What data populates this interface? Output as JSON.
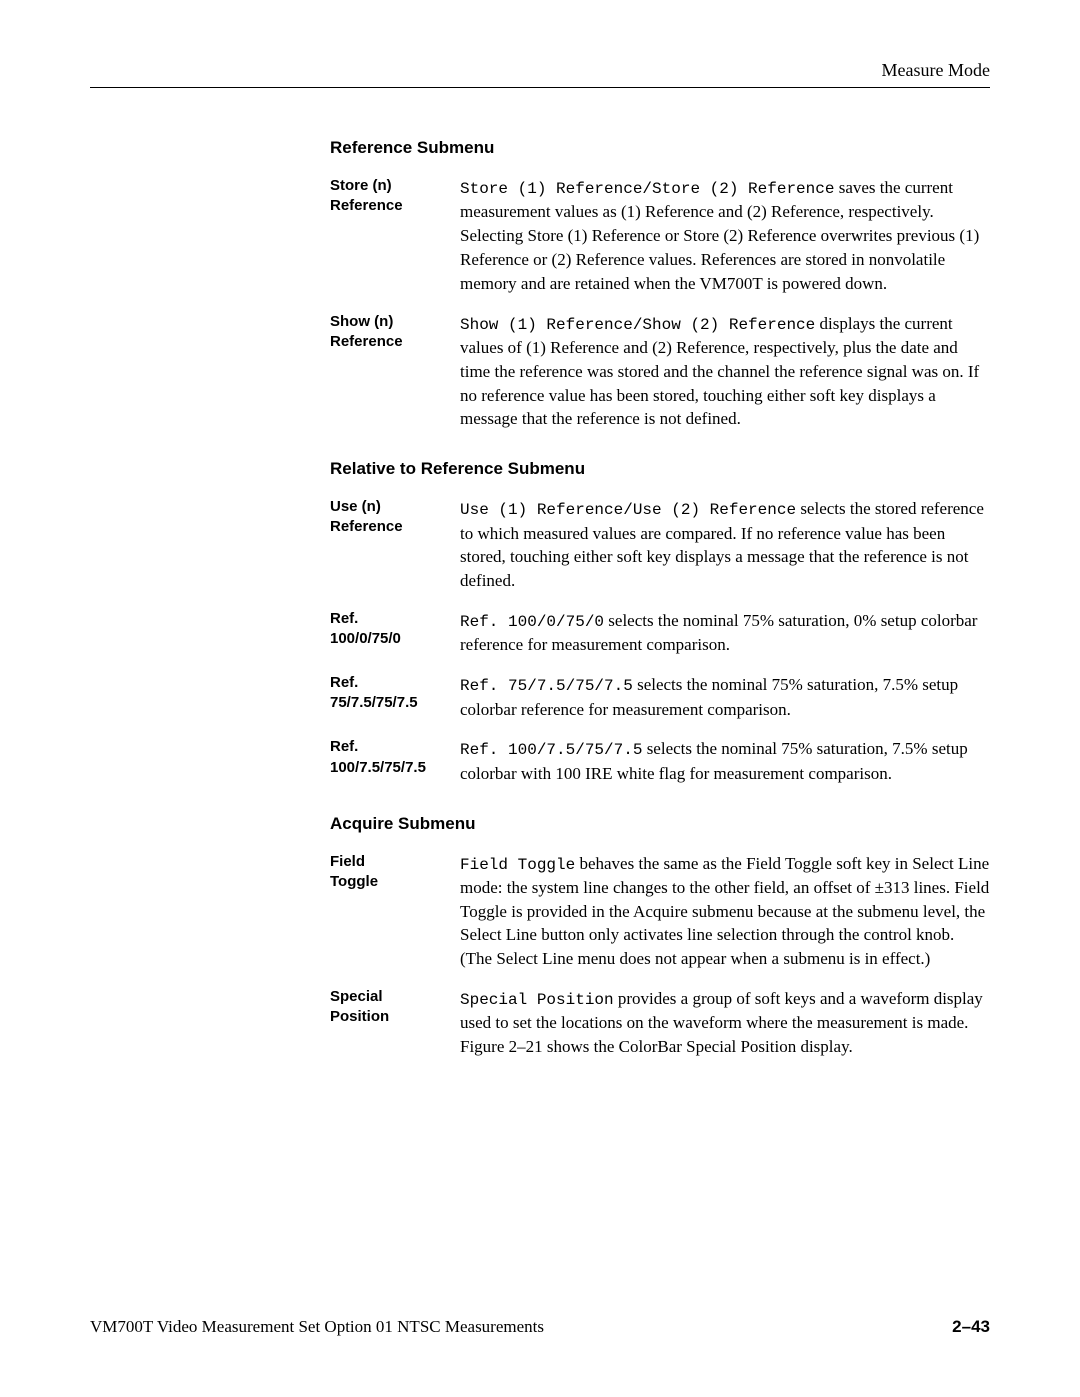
{
  "header": {
    "title": "Measure Mode"
  },
  "sections": [
    {
      "heading": "Reference Submenu",
      "entries": [
        {
          "label_line1": "Store (n)",
          "label_line2": "Reference",
          "mono": "Store (1) Reference/Store (2) Reference",
          "desc": " saves the current measurement values as (1) Reference and (2) Reference, respectively. Selecting Store (1) Reference or Store (2) Reference overwrites previous (1) Reference or (2) Reference values. References are stored in nonvolatile memory and are retained when the VM700T is powered down."
        },
        {
          "label_line1": "Show (n)",
          "label_line2": "Reference",
          "mono": "Show (1) Reference/Show (2) Reference",
          "desc": " displays the current values of (1) Reference and (2) Reference, respectively, plus the date and time the reference was stored and the channel the reference signal was on. If no reference value has been stored, touching either soft key displays a message that the reference is not defined."
        }
      ]
    },
    {
      "heading": "Relative to Reference Submenu",
      "entries": [
        {
          "label_line1": "Use (n)",
          "label_line2": "Reference",
          "mono": "Use (1) Reference/Use (2) Reference",
          "desc": " selects the stored reference to which measured values are compared. If no reference value has been stored, touching either soft key displays a message that the reference is not defined."
        },
        {
          "label_line1": "Ref.",
          "label_line2": "100/0/75/0",
          "mono": "Ref. 100/0/75/0",
          "desc": " selects the nominal 75% saturation, 0% setup colorbar reference for measurement comparison."
        },
        {
          "label_line1": "Ref.",
          "label_line2": "75/7.5/75/7.5",
          "mono": "Ref. 75/7.5/75/7.5",
          "desc": " selects the nominal 75% saturation, 7.5% setup colorbar reference for measurement comparison."
        },
        {
          "label_line1": "Ref.",
          "label_line2": "100/7.5/75/7.5",
          "mono": "Ref. 100/7.5/75/7.5",
          "desc": " selects the nominal 75% saturation, 7.5% setup colorbar with 100 IRE white flag for measurement comparison."
        }
      ]
    },
    {
      "heading": "Acquire Submenu",
      "entries": [
        {
          "label_line1": "Field",
          "label_line2": "Toggle",
          "mono": "Field Toggle",
          "desc": " behaves the same as the Field Toggle soft key in Select Line mode: the system line changes to the other field, an offset of ±313 lines. Field Toggle is provided in the Acquire submenu because at the submenu level, the Select Line button only activates line selection through the control knob. (The Select Line menu does not appear when a submenu is in effect.)"
        },
        {
          "label_line1": "Special",
          "label_line2": "Position",
          "mono": "Special Position",
          "desc": " provides a group of soft keys and a waveform display used to set the locations on the waveform where the measurement is made. Figure 2–21 shows the ColorBar Special Position display."
        }
      ]
    }
  ],
  "footer": {
    "left": "VM700T Video Measurement Set Option 01 NTSC Measurements",
    "right": "2–43"
  }
}
